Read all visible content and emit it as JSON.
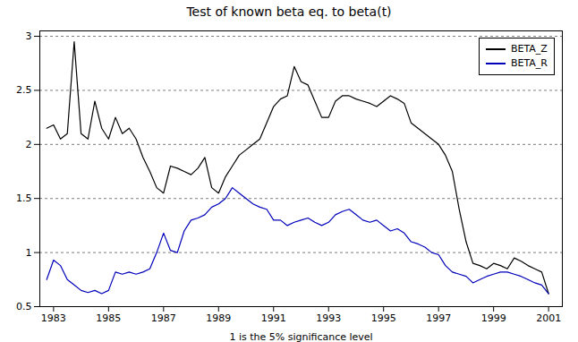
{
  "chart_data": {
    "type": "line",
    "title": "Test of known beta eq. to beta(t)",
    "xlabel": "1 is the 5% significance level",
    "x": [
      1982.75,
      1983.0,
      1983.25,
      1983.5,
      1983.75,
      1984.0,
      1984.25,
      1984.5,
      1984.75,
      1985.0,
      1985.25,
      1985.5,
      1985.75,
      1986.0,
      1986.25,
      1986.5,
      1986.75,
      1987.0,
      1987.25,
      1987.5,
      1987.75,
      1988.0,
      1988.25,
      1988.5,
      1988.75,
      1989.0,
      1989.25,
      1989.5,
      1989.75,
      1990.0,
      1990.25,
      1990.5,
      1990.75,
      1991.0,
      1991.25,
      1991.5,
      1991.75,
      1992.0,
      1992.25,
      1992.5,
      1992.75,
      1993.0,
      1993.25,
      1993.5,
      1993.75,
      1994.0,
      1994.25,
      1994.5,
      1994.75,
      1995.0,
      1995.25,
      1995.5,
      1995.75,
      1996.0,
      1996.25,
      1996.5,
      1996.75,
      1997.0,
      1997.25,
      1997.5,
      1997.75,
      1998.0,
      1998.25,
      1998.5,
      1998.75,
      1999.0,
      1999.25,
      1999.5,
      1999.75,
      2000.0,
      2000.25,
      2000.5,
      2000.75,
      2001.0
    ],
    "series": [
      {
        "name": "BETA_Z",
        "color": "#000000",
        "values": [
          2.15,
          2.18,
          2.05,
          2.1,
          2.95,
          2.1,
          2.05,
          2.4,
          2.15,
          2.05,
          2.25,
          2.1,
          2.15,
          2.05,
          1.88,
          1.75,
          1.6,
          1.55,
          1.8,
          1.78,
          1.75,
          1.72,
          1.78,
          1.88,
          1.6,
          1.55,
          1.7,
          1.8,
          1.9,
          1.95,
          2.0,
          2.05,
          2.2,
          2.35,
          2.42,
          2.45,
          2.72,
          2.58,
          2.55,
          2.4,
          2.25,
          2.25,
          2.4,
          2.45,
          2.45,
          2.42,
          2.4,
          2.38,
          2.35,
          2.4,
          2.45,
          2.42,
          2.38,
          2.2,
          2.15,
          2.1,
          2.05,
          2.0,
          1.9,
          1.75,
          1.4,
          1.1,
          0.9,
          0.88,
          0.85,
          0.9,
          0.88,
          0.85,
          0.95,
          0.92,
          0.88,
          0.85,
          0.82,
          0.62
        ]
      },
      {
        "name": "BETA_R",
        "color": "#0000bb",
        "values": [
          0.75,
          0.93,
          0.88,
          0.75,
          0.7,
          0.65,
          0.63,
          0.65,
          0.62,
          0.65,
          0.82,
          0.8,
          0.82,
          0.8,
          0.82,
          0.85,
          1.0,
          1.18,
          1.02,
          1.0,
          1.2,
          1.3,
          1.32,
          1.35,
          1.42,
          1.45,
          1.5,
          1.6,
          1.55,
          1.5,
          1.45,
          1.42,
          1.4,
          1.3,
          1.3,
          1.25,
          1.28,
          1.3,
          1.32,
          1.28,
          1.25,
          1.28,
          1.35,
          1.38,
          1.4,
          1.35,
          1.3,
          1.28,
          1.3,
          1.25,
          1.2,
          1.22,
          1.18,
          1.1,
          1.08,
          1.05,
          1.0,
          0.98,
          0.88,
          0.82,
          0.8,
          0.78,
          0.72,
          0.75,
          0.78,
          0.8,
          0.82,
          0.82,
          0.8,
          0.78,
          0.75,
          0.72,
          0.7,
          0.62
        ]
      }
    ],
    "xlim": [
      1982.5,
      2001.5
    ],
    "xticks": [
      1983,
      1985,
      1987,
      1989,
      1991,
      1993,
      1995,
      1997,
      1999,
      2001
    ],
    "ylim": [
      0.5,
      3.05
    ],
    "yticks": [
      0.5,
      1,
      1.5,
      2,
      2.5,
      3
    ],
    "grid": true,
    "legend": "upper right"
  }
}
